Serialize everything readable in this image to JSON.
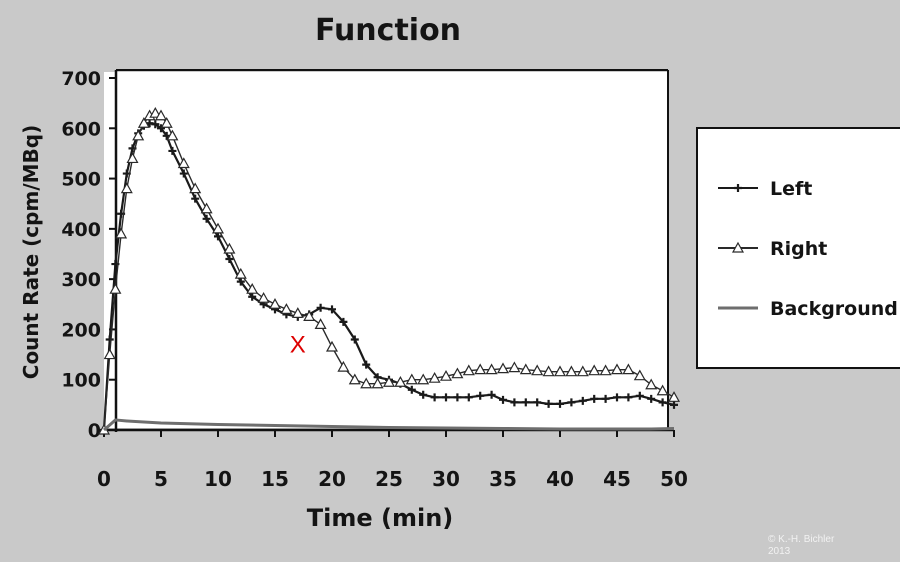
{
  "chart_data": {
    "type": "line",
    "title": "Function",
    "xlabel": "Time (min)",
    "ylabel": "Count Rate (cpm/MBq)",
    "xlim": [
      0,
      50
    ],
    "ylim": [
      0,
      700
    ],
    "xticks": [
      "0",
      "5",
      "10",
      "15",
      "20",
      "25",
      "30",
      "35",
      "40",
      "45",
      "50"
    ],
    "yticks": [
      "0",
      "100",
      "200",
      "300",
      "400",
      "500",
      "600",
      "700"
    ],
    "grid": false,
    "legend_position": "right",
    "annotation": {
      "text": "X",
      "x": 17,
      "y": 170,
      "color": "#dd0000"
    },
    "series": [
      {
        "name": "Left",
        "marker": "plus",
        "color": "#1a1a1a",
        "x": [
          0,
          0.5,
          1,
          1.5,
          2,
          2.5,
          3,
          3.5,
          4,
          4.5,
          5,
          5.5,
          6,
          7,
          8,
          9,
          10,
          11,
          12,
          13,
          14,
          15,
          16,
          17,
          18,
          19,
          20,
          21,
          22,
          23,
          24,
          25,
          26,
          27,
          28,
          29,
          30,
          31,
          32,
          33,
          34,
          35,
          36,
          37,
          38,
          39,
          40,
          41,
          42,
          43,
          44,
          45,
          46,
          47,
          48,
          49,
          50
        ],
        "y": [
          0,
          180,
          330,
          430,
          510,
          560,
          590,
          605,
          610,
          608,
          600,
          585,
          555,
          510,
          460,
          420,
          385,
          340,
          295,
          265,
          250,
          240,
          230,
          225,
          230,
          243,
          240,
          215,
          180,
          130,
          105,
          100,
          92,
          80,
          70,
          65,
          65,
          65,
          65,
          68,
          70,
          60,
          55,
          55,
          55,
          52,
          52,
          55,
          58,
          62,
          62,
          65,
          65,
          68,
          62,
          55,
          50
        ]
      },
      {
        "name": "Right",
        "marker": "triangle",
        "color": "#2a2a2a",
        "x": [
          0,
          0.5,
          1,
          1.5,
          2,
          2.5,
          3,
          3.5,
          4,
          4.5,
          5,
          5.5,
          6,
          7,
          8,
          9,
          10,
          11,
          12,
          13,
          14,
          15,
          16,
          17,
          18,
          19,
          20,
          21,
          22,
          23,
          24,
          25,
          26,
          27,
          28,
          29,
          30,
          31,
          32,
          33,
          34,
          35,
          36,
          37,
          38,
          39,
          40,
          41,
          42,
          43,
          44,
          45,
          46,
          47,
          48,
          49,
          50
        ],
        "y": [
          0,
          150,
          280,
          390,
          480,
          540,
          585,
          610,
          625,
          630,
          625,
          610,
          585,
          530,
          480,
          440,
          400,
          360,
          310,
          280,
          262,
          250,
          240,
          232,
          226,
          210,
          165,
          125,
          100,
          92,
          92,
          95,
          95,
          100,
          100,
          103,
          107,
          112,
          118,
          120,
          120,
          122,
          124,
          120,
          118,
          116,
          116,
          116,
          116,
          118,
          118,
          120,
          120,
          108,
          90,
          78,
          65
        ]
      },
      {
        "name": "Background",
        "marker": "none",
        "color": "#6e6e6e",
        "x": [
          0,
          1,
          2,
          5,
          10,
          15,
          20,
          25,
          30,
          35,
          40,
          45,
          48,
          50
        ],
        "y": [
          0,
          20,
          18,
          14,
          11,
          9,
          7,
          5,
          4,
          3,
          2,
          2,
          2,
          3
        ]
      }
    ]
  },
  "copyright": {
    "line1": "© K.-H. Bichler",
    "line2": "2013"
  }
}
